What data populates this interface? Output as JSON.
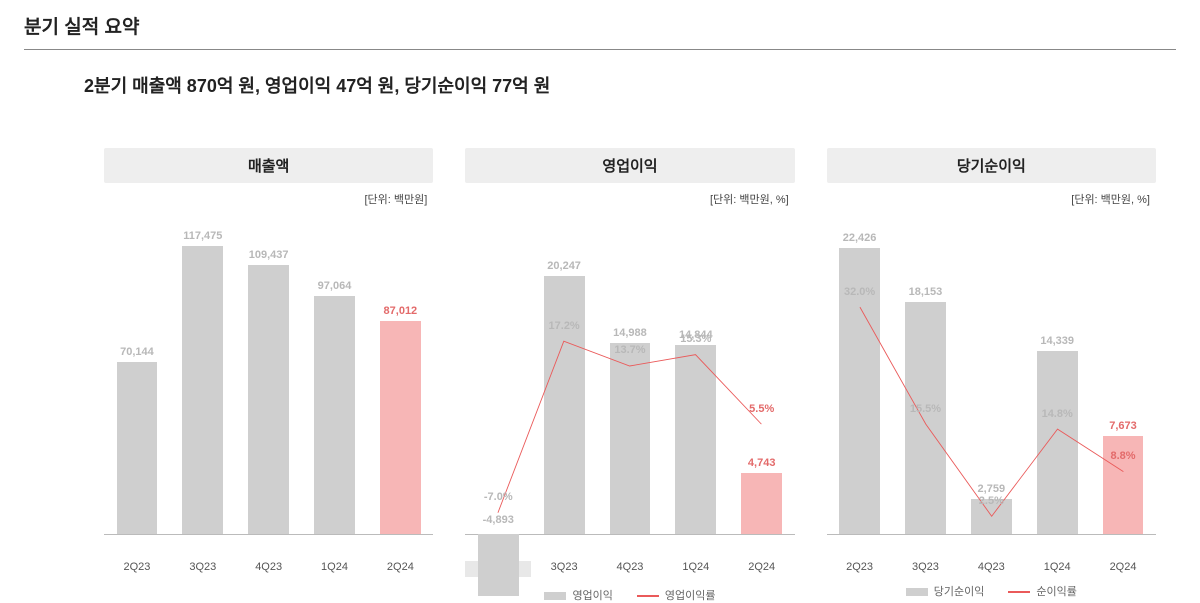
{
  "title": "분기 실적 요약",
  "subtitle": "2분기 매출액 870억 원, 영업이익 47억 원, 당기순이익 77억 원",
  "colors": {
    "bar": "#cfcfcf",
    "bar_highlight": "#f7b6b6",
    "line": "#ea5a5a",
    "label_muted": "#b8b8b8",
    "label_highlight": "#e36a6a",
    "header_bg": "#eeeeee",
    "axis": "#bbbbbb",
    "background": "#ffffff"
  },
  "categories": [
    "2Q23",
    "3Q23",
    "4Q23",
    "1Q24",
    "2Q24"
  ],
  "highlight_index": 4,
  "charts": {
    "revenue": {
      "title": "매출액",
      "unit": "[단위: 백만원]",
      "type": "bar",
      "values": [
        70144,
        117475,
        109437,
        97064,
        87012
      ],
      "ymax": 130000,
      "ymin": 0
    },
    "operating": {
      "title": "영업이익",
      "unit": "[단위: 백만원, %]",
      "type": "bar+line",
      "bar_values": [
        -4893,
        20247,
        14988,
        14844,
        4743
      ],
      "bar_ymax": 25000,
      "bar_ymin_neg": -6000,
      "line_values_pct": [
        -7.0,
        17.2,
        13.7,
        15.3,
        5.5
      ],
      "line_ymin": -10,
      "line_ymax": 35,
      "legend": {
        "bar": "영업이익",
        "line": "영업이익률"
      }
    },
    "net": {
      "title": "당기순이익",
      "unit": "[단위: 백만원, %]",
      "type": "bar+line",
      "bar_values": [
        22426,
        18153,
        2759,
        14339,
        7673
      ],
      "bar_ymax": 25000,
      "bar_ymin_neg": 0,
      "line_values_pct": [
        32.0,
        15.5,
        2.5,
        14.8,
        8.8
      ],
      "line_ymin": 0,
      "line_ymax": 45,
      "legend": {
        "bar": "당기순이익",
        "line": "순이익률"
      }
    }
  }
}
